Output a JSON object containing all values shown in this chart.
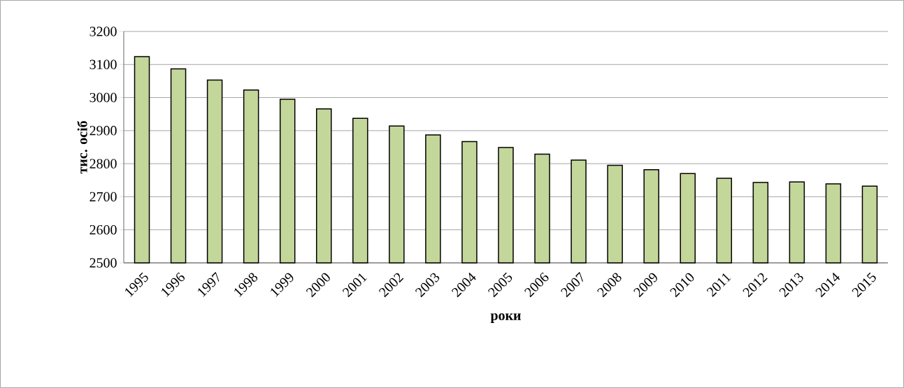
{
  "chart_data": {
    "type": "bar",
    "xlabel": "роки",
    "ylabel": "тис. осіб",
    "categories": [
      "1995",
      "1996",
      "1997",
      "1998",
      "1999",
      "2000",
      "2001",
      "2002",
      "2003",
      "2004",
      "2005",
      "2006",
      "2007",
      "2008",
      "2009",
      "2010",
      "2011",
      "2012",
      "2013",
      "2014",
      "2015"
    ],
    "values": [
      3124,
      3087,
      3053,
      3023,
      2995,
      2966,
      2937,
      2914,
      2887,
      2867,
      2849,
      2829,
      2811,
      2795,
      2782,
      2770,
      2756,
      2743,
      2745,
      2739,
      2732
    ],
    "color": "#c4d79b",
    "ylim": [
      2500,
      3200
    ],
    "yticks": [
      2500,
      2600,
      2700,
      2800,
      2900,
      3000,
      3100,
      3200
    ],
    "grid": "y"
  }
}
